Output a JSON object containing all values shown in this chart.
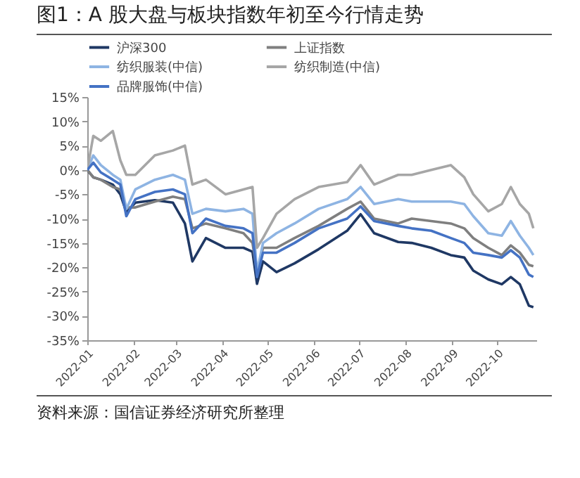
{
  "chart_data": {
    "type": "line",
    "title": "图1：A 股大盘与板块指数年初至今行情走势",
    "annotations": [
      "资料来源：国信证券经济研究所整理"
    ],
    "x": [
      "2022-01-01",
      "2022-01-05",
      "2022-01-10",
      "2022-01-18",
      "2022-01-23",
      "2022-01-27",
      "2022-02-02",
      "2022-02-15",
      "2022-02-27",
      "2022-03-07",
      "2022-03-12",
      "2022-03-21",
      "2022-04-03",
      "2022-04-15",
      "2022-04-21",
      "2022-04-24",
      "2022-04-28",
      "2022-05-07",
      "2022-05-19",
      "2022-06-04",
      "2022-06-23",
      "2022-07-02",
      "2022-07-11",
      "2022-07-27",
      "2022-08-05",
      "2022-08-18",
      "2022-08-31",
      "2022-09-09",
      "2022-09-15",
      "2022-09-25",
      "2022-10-04",
      "2022-10-10",
      "2022-10-16",
      "2022-10-22",
      "2022-10-25"
    ],
    "series": [
      {
        "name": "沪深300",
        "color": "#1f3864",
        "values": [
          0,
          -1.5,
          -2,
          -3,
          -5,
          -8.7,
          -6.7,
          -6.2,
          -6.7,
          -11,
          -18.8,
          -14,
          -16,
          -16,
          -16.8,
          -23.4,
          -18.8,
          -21,
          -19.2,
          -16.3,
          -12.5,
          -9.1,
          -13,
          -14.8,
          -15,
          -16,
          -17.5,
          -18,
          -20.7,
          -22.5,
          -23.5,
          -22,
          -23.5,
          -27.9,
          -28.2
        ]
      },
      {
        "name": "上证指数",
        "color": "#7f7f7f",
        "values": [
          0,
          -1.5,
          -2,
          -3.5,
          -4,
          -7.7,
          -7.7,
          -6.5,
          -5.5,
          -6,
          -12,
          -11,
          -12,
          -13,
          -15,
          -21,
          -16,
          -16,
          -14,
          -11.5,
          -8,
          -6.5,
          -10,
          -11,
          -10,
          -10.5,
          -11,
          -12,
          -14,
          -16,
          -17.5,
          -15.5,
          -17,
          -19.5,
          -19.8
        ]
      },
      {
        "name": "纺织服装(中信)",
        "color": "#8eb4e3",
        "values": [
          0,
          3,
          1,
          -1,
          -2,
          -8,
          -4,
          -2,
          -1,
          -2,
          -9,
          -8,
          -8.5,
          -8,
          -9,
          -21,
          -15,
          -13,
          -11,
          -8,
          -6,
          -3.5,
          -7,
          -6,
          -6.5,
          -6.5,
          -6.5,
          -7,
          -9.5,
          -13,
          -13.5,
          -10.5,
          -13.5,
          -16,
          -17.5
        ]
      },
      {
        "name": "纺织制造(中信)",
        "color": "#a6a6a6",
        "values": [
          0,
          7,
          6,
          8,
          2,
          -1,
          -1,
          3,
          4,
          5,
          -3,
          -2,
          -5,
          -4,
          -3.5,
          -16,
          -14,
          -9,
          -6,
          -3.5,
          -2.5,
          1,
          -3,
          -1,
          -1,
          0,
          1,
          -1.5,
          -5,
          -8.5,
          -7,
          -3.5,
          -7,
          -9,
          -12
        ]
      },
      {
        "name": "品牌服饰(中信)",
        "color": "#4472c4",
        "values": [
          0,
          1.5,
          -0.5,
          -2,
          -3,
          -9.5,
          -6,
          -4.5,
          -4,
          -5,
          -13,
          -10,
          -11.5,
          -12,
          -13,
          -22,
          -17,
          -17,
          -15,
          -12,
          -10,
          -7.5,
          -10.5,
          -11.5,
          -12,
          -12.5,
          -14,
          -15,
          -17,
          -17.5,
          -18,
          -16.5,
          -18,
          -21.5,
          -22
        ]
      }
    ],
    "xlim": [
      "2022-01-01",
      "2022-10-27"
    ],
    "xticks": [
      "2022-01",
      "2022-02",
      "2022-03",
      "2022-04",
      "2022-05",
      "2022-06",
      "2022-07",
      "2022-08",
      "2022-09",
      "2022-10"
    ],
    "ylim": [
      -35,
      15
    ],
    "yticks": [
      {
        "value": 15,
        "label": "15%"
      },
      {
        "value": 10,
        "label": "10%"
      },
      {
        "value": 5,
        "label": "5%"
      },
      {
        "value": 0,
        "label": "0%"
      },
      {
        "value": -5,
        "label": "-5%"
      },
      {
        "value": -10,
        "label": "-10%"
      },
      {
        "value": -15,
        "label": "-15%"
      },
      {
        "value": -20,
        "label": "-20%"
      },
      {
        "value": -25,
        "label": "-25%"
      },
      {
        "value": -30,
        "label": "-30%"
      },
      {
        "value": -35,
        "label": "-35%"
      }
    ],
    "legend": "top",
    "grid": false,
    "line_style": "solid",
    "marker": "none"
  }
}
